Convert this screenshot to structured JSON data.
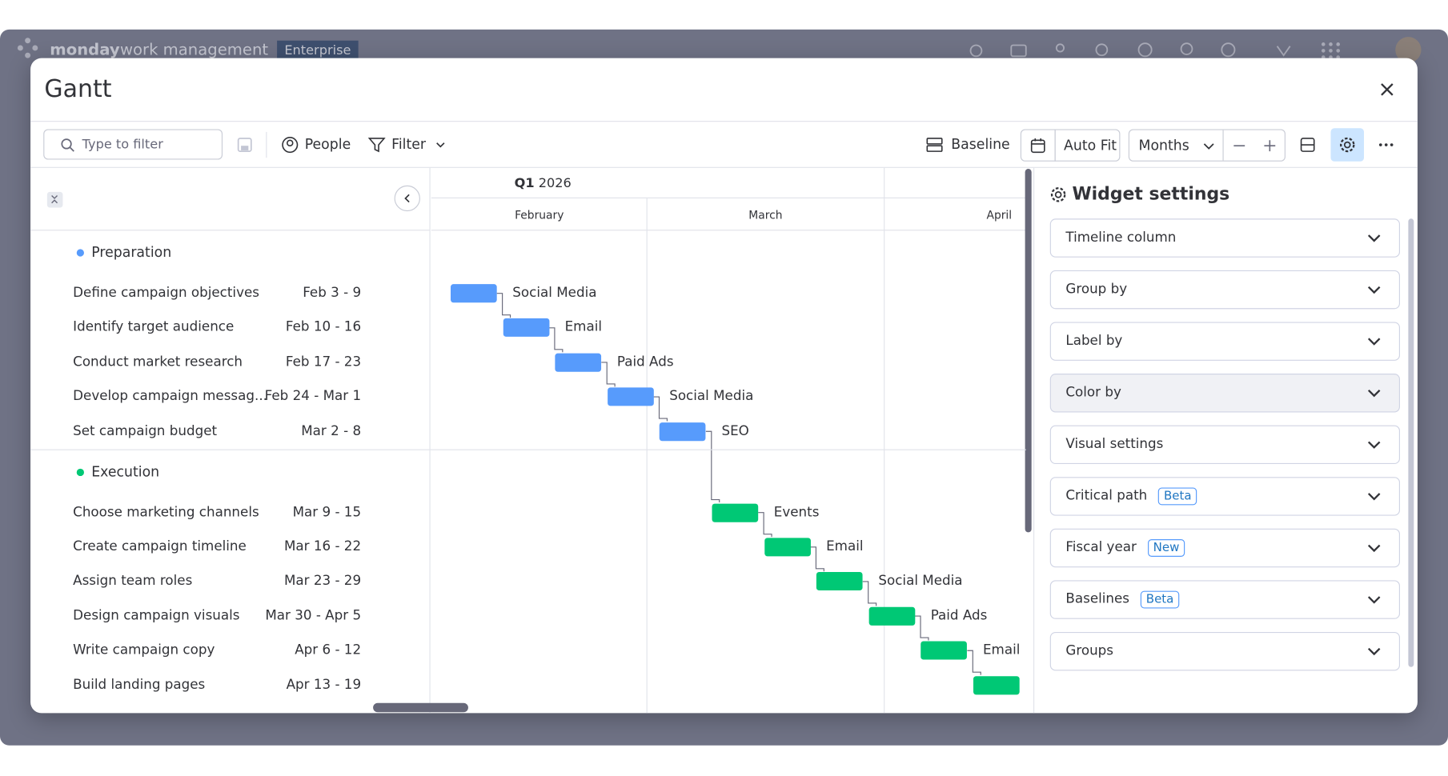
{
  "app": {
    "brand": "monday",
    "product": "work management",
    "plan": "Enterprise"
  },
  "modal": {
    "title": "Gantt"
  },
  "toolbar": {
    "search_placeholder": "Type to filter",
    "people": "People",
    "filter": "Filter",
    "baseline": "Baseline",
    "auto_fit": "Auto Fit",
    "zoom": "Months"
  },
  "timeline": {
    "quarter": "Q1",
    "year": "2026",
    "months": [
      "February",
      "March",
      "April"
    ]
  },
  "groups": [
    {
      "name": "Preparation",
      "color": "#579bfc",
      "tasks": [
        {
          "name": "Define campaign objectives",
          "dates": "Feb 3 - 9",
          "label": "Social Media"
        },
        {
          "name": "Identify target audience",
          "dates": "Feb 10 - 16",
          "label": "Email"
        },
        {
          "name": "Conduct market research",
          "dates": "Feb 17 - 23",
          "label": "Paid Ads"
        },
        {
          "name": "Develop campaign messag...",
          "dates": "Feb 24 - Mar 1",
          "label": "Social Media"
        },
        {
          "name": "Set campaign budget",
          "dates": "Mar 2 - 8",
          "label": "SEO"
        }
      ]
    },
    {
      "name": "Execution",
      "color": "#00c875",
      "tasks": [
        {
          "name": "Choose marketing channels",
          "dates": "Mar 9 - 15",
          "label": "Events"
        },
        {
          "name": "Create campaign timeline",
          "dates": "Mar 16 - 22",
          "label": "Email"
        },
        {
          "name": "Assign team roles",
          "dates": "Mar 23 - 29",
          "label": "Social Media"
        },
        {
          "name": "Design campaign visuals",
          "dates": "Mar 30 - Apr 5",
          "label": "Paid Ads"
        },
        {
          "name": "Write campaign copy",
          "dates": "Apr 6 - 12",
          "label": "Email"
        },
        {
          "name": "Build landing pages",
          "dates": "Apr 13 - 19",
          "label": null
        }
      ]
    }
  ],
  "settings": {
    "title": "Widget settings",
    "items": [
      {
        "label": "Timeline column"
      },
      {
        "label": "Group by"
      },
      {
        "label": "Label by"
      },
      {
        "label": "Color by",
        "hovered": true
      },
      {
        "label": "Visual settings"
      },
      {
        "label": "Critical path",
        "badge": "Beta"
      },
      {
        "label": "Fiscal year",
        "badge": "New"
      },
      {
        "label": "Baselines",
        "badge": "Beta"
      },
      {
        "label": "Groups"
      }
    ]
  }
}
